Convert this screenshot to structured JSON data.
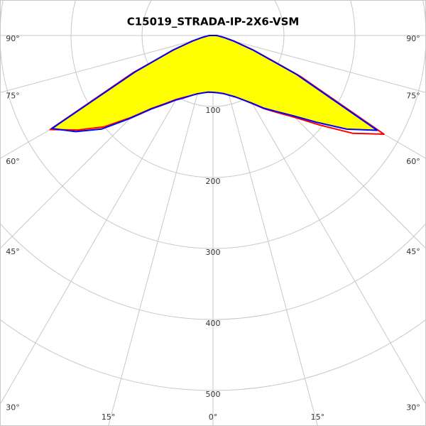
{
  "chart_data": {
    "type": "polar",
    "title": "C15019_STRADA-IP-2X6-VSM",
    "rlim": [
      0,
      600
    ],
    "rticks": [
      100,
      200,
      300,
      400,
      500
    ],
    "angle_ticks": [
      {
        "value": 0,
        "label": "0°"
      },
      {
        "value": 15,
        "label": "15°"
      },
      {
        "value": 30,
        "label": "30°"
      },
      {
        "value": 45,
        "label": "45°"
      },
      {
        "value": 60,
        "label": "60°"
      },
      {
        "value": 75,
        "label": "75°"
      },
      {
        "value": 90,
        "label": "90°"
      }
    ],
    "x": [
      -90,
      -85,
      -80,
      -75,
      -70,
      -65,
      -60,
      -55,
      -50,
      -45,
      -40,
      -35,
      -30,
      -25,
      -20,
      -15,
      -10,
      -5,
      0,
      5,
      10,
      15,
      20,
      25,
      30,
      35,
      40,
      45,
      50,
      55,
      60,
      65,
      70,
      75,
      80,
      85,
      90
    ],
    "series": [
      {
        "color": "#ff0000",
        "values": [
          5,
          8,
          15,
          30,
          58,
          125,
          265,
          232,
          200,
          163,
          134,
          117,
          104,
          96,
          90,
          85,
          82,
          80,
          80,
          81,
          83,
          87,
          92,
          100,
          111,
          126,
          142,
          163,
          196,
          240,
          278,
          135,
          62,
          31,
          15,
          8,
          5
        ]
      },
      {
        "color": "#0000ff",
        "fill": "#ffff00",
        "values": [
          5,
          8,
          15,
          30,
          60,
          120,
          262,
          236,
          205,
          165,
          135,
          118,
          105,
          97,
          90,
          85,
          82,
          80,
          80,
          81,
          83,
          87,
          92,
          100,
          110,
          125,
          140,
          160,
          190,
          230,
          267,
          130,
          60,
          30,
          15,
          8,
          5
        ]
      }
    ]
  }
}
